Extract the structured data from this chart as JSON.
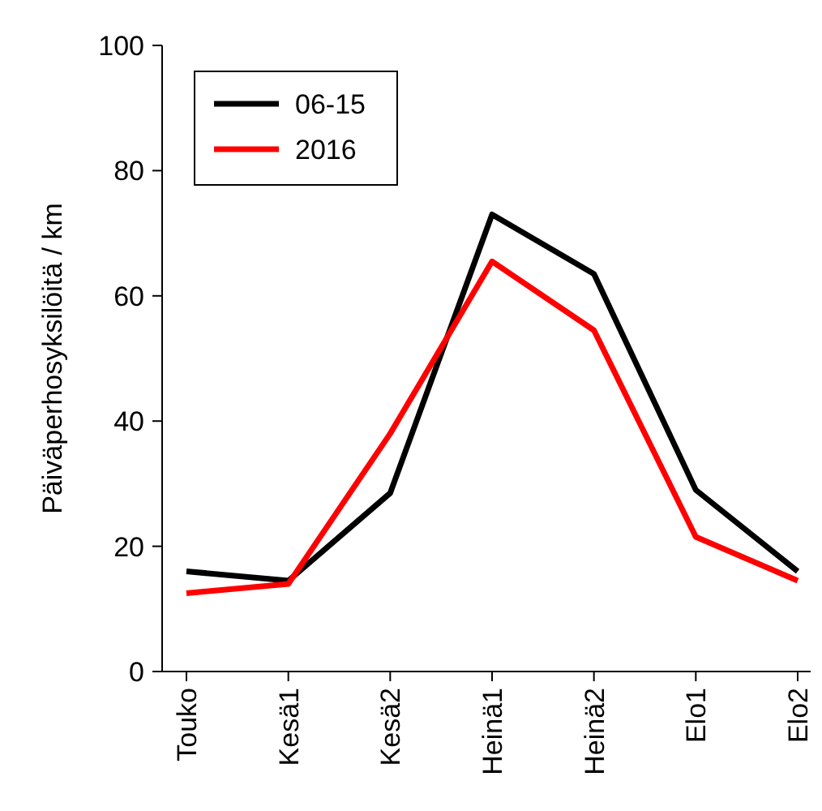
{
  "chart_data": {
    "type": "line",
    "ylabel": "Päiväperhosyksilöitä / km",
    "categories": [
      "Touko",
      "Kesä1",
      "Kesä2",
      "Heinä1",
      "Heinä2",
      "Elo1",
      "Elo2"
    ],
    "series": [
      {
        "name": "06-15",
        "color": "#000000",
        "values": [
          16,
          14.5,
          28.5,
          73,
          63.5,
          29,
          16
        ]
      },
      {
        "name": "2016",
        "color": "#ff0000",
        "values": [
          12.5,
          14,
          38,
          65.5,
          54.5,
          21.5,
          14.5
        ]
      }
    ],
    "ylim": [
      0,
      100
    ],
    "yticks": [
      0,
      20,
      40,
      60,
      80,
      100
    ],
    "legend": "top left",
    "grid": false,
    "marker": "none",
    "line_style": "solid"
  }
}
